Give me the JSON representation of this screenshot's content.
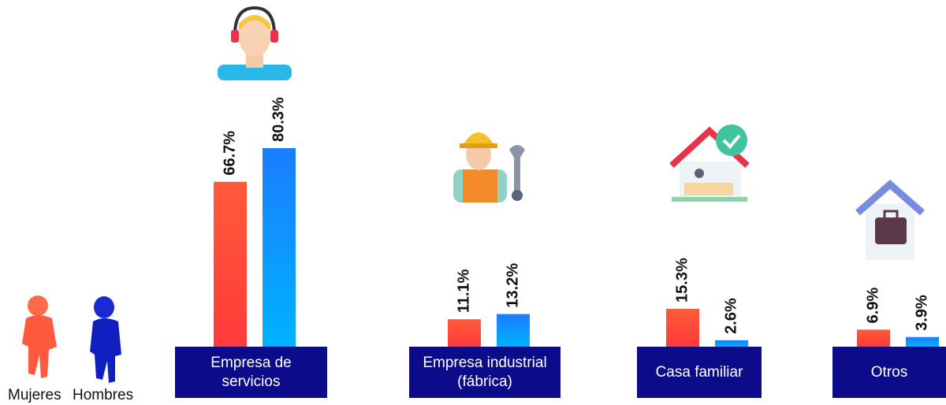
{
  "chart_data": {
    "type": "bar",
    "categories": [
      "Empresa de servicios",
      "Empresa industrial (fábrica)",
      "Casa familiar",
      "Otros"
    ],
    "series": [
      {
        "name": "Mujeres",
        "color": "#ff4a35",
        "values": [
          66.7,
          11.1,
          15.3,
          6.9
        ],
        "value_labels": [
          "66.7%",
          "11.1%",
          "15.3%",
          "6.9%"
        ]
      },
      {
        "name": "Hombres",
        "color": "#1a8cff",
        "values": [
          80.3,
          13.2,
          2.6,
          3.9
        ],
        "value_labels": [
          "80.3%",
          "13.2%",
          "2.6%",
          "3.9%"
        ]
      }
    ]
  }
}
